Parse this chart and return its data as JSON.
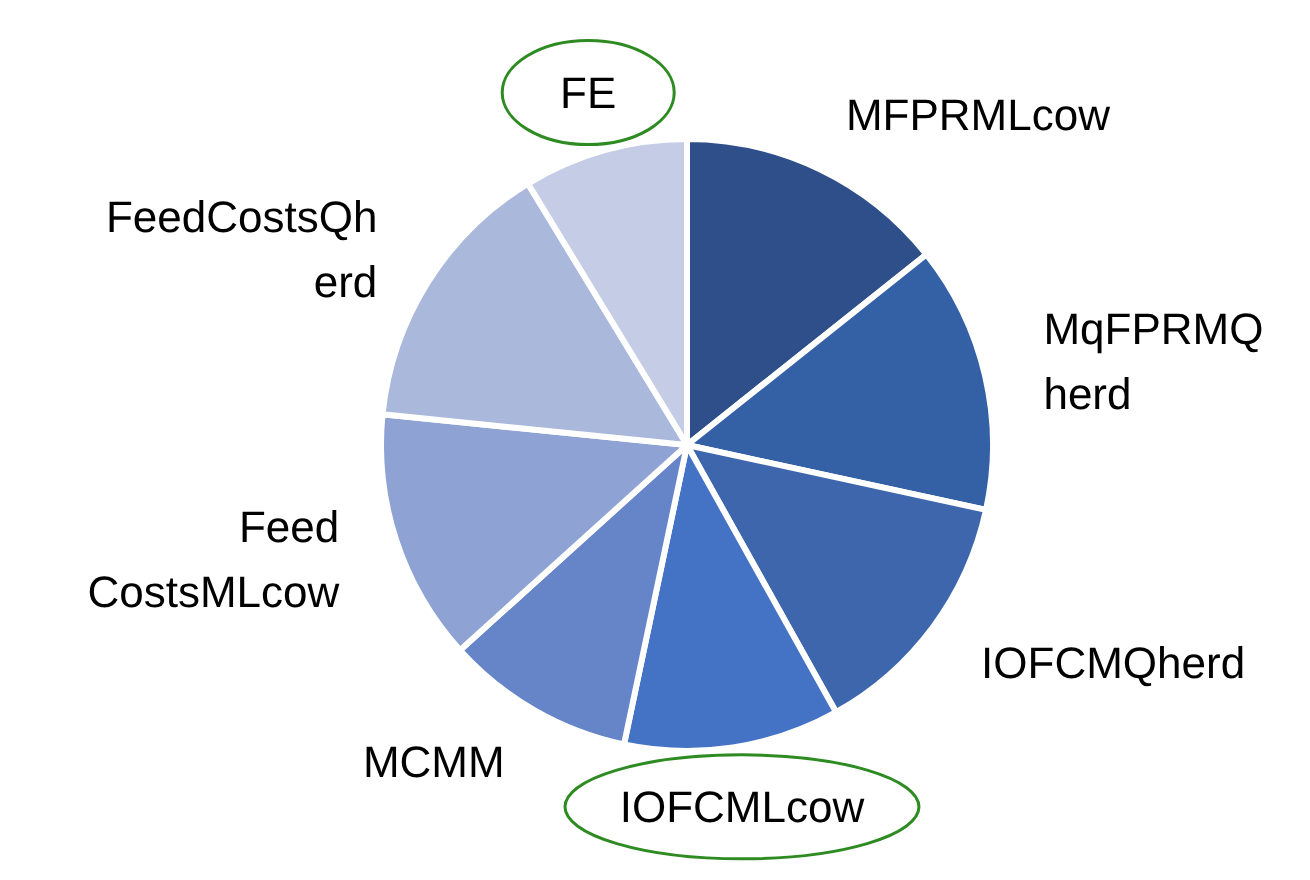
{
  "chart_data": {
    "type": "pie",
    "categories": [
      "MFPRMLcow",
      "MqFPRMQ\nherd",
      "IOFCMQherd",
      "IOFCMLcow",
      "MCMM",
      "Feed\nCostsMLcow",
      "FeedCostsQh\nerd",
      "FE"
    ],
    "values": [
      14.3,
      14.1,
      13.5,
      11.4,
      10.0,
      13.3,
      14.7,
      8.7
    ],
    "colors": [
      "#2f4f8a",
      "#3460a6",
      "#3d66ad",
      "#4472c4",
      "#6684c8",
      "#8fa2d4",
      "#aab8dc",
      "#c5cde6"
    ]
  }
}
